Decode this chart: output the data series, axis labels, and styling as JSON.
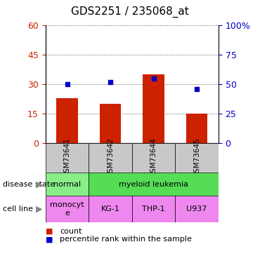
{
  "title": "GDS2251 / 235068_at",
  "samples": [
    "GSM73641",
    "GSM73642",
    "GSM73644",
    "GSM73645"
  ],
  "count_values": [
    23,
    20,
    35,
    15
  ],
  "percentile_values": [
    50,
    52,
    55,
    46
  ],
  "bar_color": "#cc2200",
  "dot_color": "#0000cc",
  "left_yticks": [
    0,
    15,
    30,
    45,
    60
  ],
  "right_yticks": [
    0,
    25,
    50,
    75,
    100
  ],
  "left_yticklabels": [
    "0",
    "15",
    "30",
    "45",
    "60"
  ],
  "right_yticklabels": [
    "0",
    "25",
    "50",
    "75",
    "100%"
  ],
  "ylim_left": [
    0,
    60
  ],
  "ylim_right": [
    0,
    100
  ],
  "disease_state_label": "disease state",
  "disease_state_groups": [
    {
      "text": "normal",
      "span": [
        0,
        1
      ],
      "color": "#88ee88"
    },
    {
      "text": "myeloid leukemia",
      "span": [
        1,
        4
      ],
      "color": "#55dd55"
    }
  ],
  "cell_line_label": "cell line",
  "cell_line_groups": [
    {
      "text": "monocyt\ne",
      "span": [
        0,
        1
      ],
      "color": "#ee88ee"
    },
    {
      "text": "KG-1",
      "span": [
        1,
        2
      ],
      "color": "#ee88ee"
    },
    {
      "text": "THP-1",
      "span": [
        2,
        3
      ],
      "color": "#ee88ee"
    },
    {
      "text": "U937",
      "span": [
        3,
        4
      ],
      "color": "#ee88ee"
    }
  ],
  "legend_count_color": "#cc2200",
  "legend_pct_color": "#0000cc",
  "sample_bg_color": "#c8c8c8",
  "gridline_color": "#555555"
}
